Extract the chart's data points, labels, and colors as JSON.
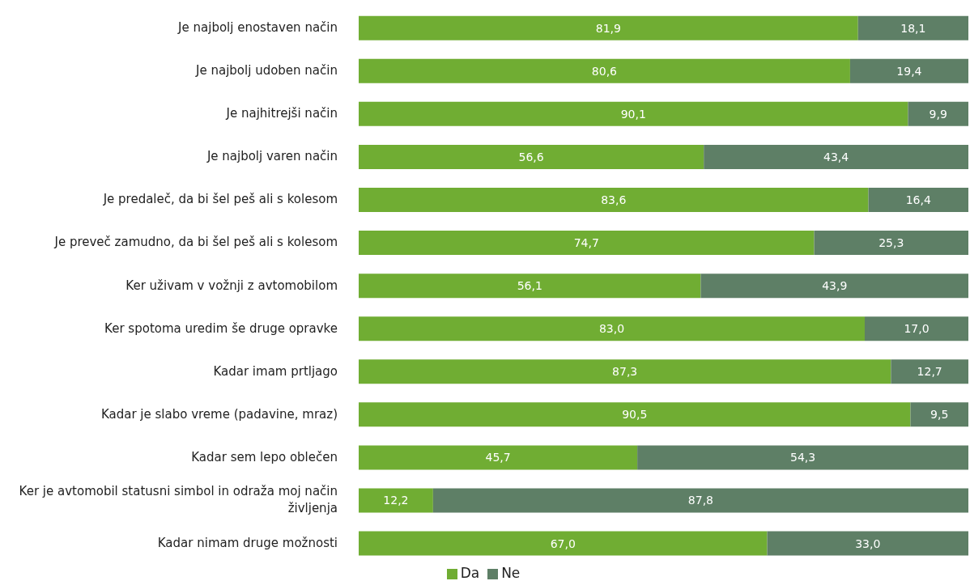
{
  "chart_data": {
    "type": "bar",
    "orientation": "horizontal",
    "stacked": true,
    "legend": "bottom",
    "grid": false,
    "tick_labels": "y",
    "categories": [
      "Je najbolj enostaven način",
      "Je najbolj udoben način",
      "Je najhitrejši način",
      "Je najbolj varen način",
      "Je predaleč, da bi šel peš ali s kolesom",
      "Je preveč zamudno, da bi šel peš ali s kolesom",
      "Ker uživam v vožnji z avtomobilom",
      "Ker spotoma uredim še druge opravke",
      "Kadar imam prtljago",
      "Kadar je slabo vreme (padavine, mraz)",
      "Kadar sem lepo oblečen",
      "Ker je avtomobil statusni simbol in odraža moj način življenja",
      "Kadar nimam druge možnosti"
    ],
    "series": [
      {
        "name": "Da",
        "color": "#70ad33",
        "values": [
          81.9,
          80.6,
          90.1,
          56.6,
          83.6,
          74.7,
          56.1,
          83.0,
          87.3,
          90.5,
          45.7,
          12.2,
          67.0
        ],
        "value_labels": [
          "81,9",
          "80,6",
          "90,1",
          "56,6",
          "83,6",
          "74,7",
          "56,1",
          "83,0",
          "87,3",
          "90,5",
          "45,7",
          "12,2",
          "67,0"
        ]
      },
      {
        "name": "Ne",
        "color": "#5e7f66",
        "values": [
          18.1,
          19.4,
          9.9,
          43.4,
          16.4,
          25.3,
          43.9,
          17.0,
          12.7,
          9.5,
          54.3,
          87.8,
          33.0
        ],
        "value_labels": [
          "18,1",
          "19,4",
          "9,9",
          "43,4",
          "16,4",
          "25,3",
          "43,9",
          "17,0",
          "12,7",
          "9,5",
          "54,3",
          "87,8",
          "33,0"
        ]
      }
    ]
  }
}
